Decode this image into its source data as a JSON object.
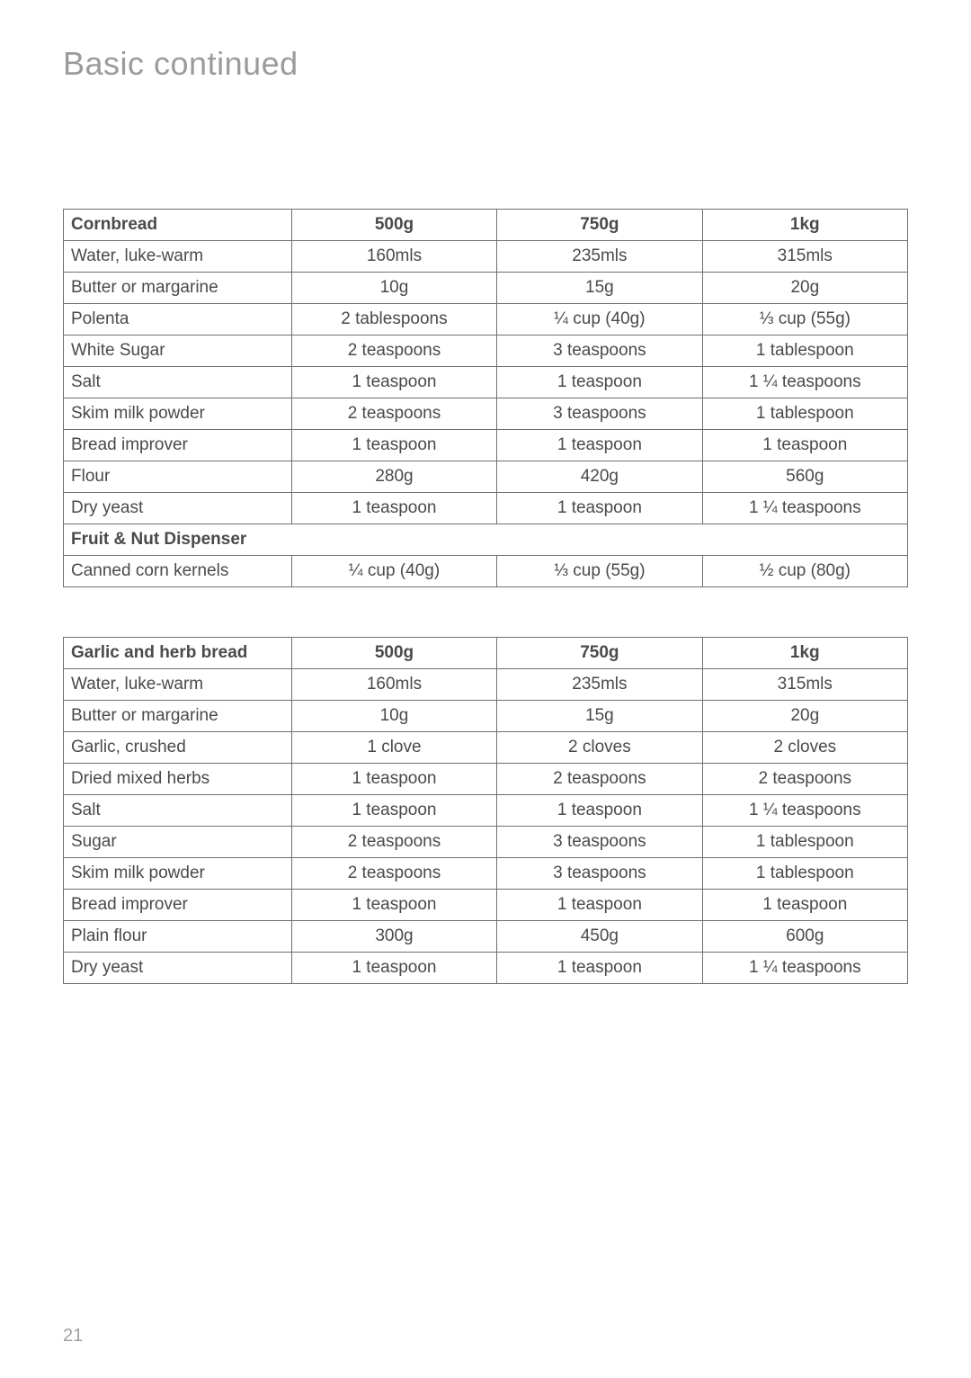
{
  "page_title": "Basic continued",
  "page_number": "21",
  "style": {
    "page_bg": "#ffffff",
    "title_color": "#9b9b9b",
    "title_fontsize": 36,
    "border_color": "#6f6f6f",
    "text_color": "#4a4a4a",
    "cell_fontsize": 19,
    "pagenum_color": "#a0a0a0",
    "col_widths_pct": [
      27,
      24.3,
      24.3,
      24.4
    ]
  },
  "tables": [
    {
      "header": [
        "Cornbread",
        "500g",
        "750g",
        "1kg"
      ],
      "rows": [
        {
          "type": "row",
          "cells": [
            "Water, luke-warm",
            "160mls",
            "235mls",
            "315mls"
          ]
        },
        {
          "type": "row",
          "cells": [
            "Butter or margarine",
            "10g",
            "15g",
            "20g"
          ]
        },
        {
          "type": "row",
          "cells": [
            "Polenta",
            "2 tablespoons",
            "¼ cup (40g)",
            "⅓ cup (55g)"
          ]
        },
        {
          "type": "row",
          "cells": [
            "White Sugar",
            "2 teaspoons",
            "3 teaspoons",
            "1 tablespoon"
          ]
        },
        {
          "type": "row",
          "cells": [
            "Salt",
            "1 teaspoon",
            "1 teaspoon",
            "1 ¼ teaspoons"
          ]
        },
        {
          "type": "row",
          "cells": [
            "Skim milk powder",
            "2 teaspoons",
            "3 teaspoons",
            "1 tablespoon"
          ]
        },
        {
          "type": "row",
          "cells": [
            "Bread improver",
            "1 teaspoon",
            "1 teaspoon",
            "1 teaspoon"
          ]
        },
        {
          "type": "row",
          "cells": [
            "Flour",
            "280g",
            "420g",
            "560g"
          ]
        },
        {
          "type": "row",
          "cells": [
            "Dry yeast",
            "1 teaspoon",
            "1 teaspoon",
            "1 ¼ teaspoons"
          ]
        },
        {
          "type": "section",
          "label": "Fruit & Nut Dispenser"
        },
        {
          "type": "row",
          "cells": [
            "Canned corn kernels",
            "¼ cup (40g)",
            "⅓ cup (55g)",
            "½ cup (80g)"
          ]
        }
      ]
    },
    {
      "header": [
        "Garlic and herb bread",
        "500g",
        "750g",
        "1kg"
      ],
      "rows": [
        {
          "type": "row",
          "cells": [
            "Water, luke-warm",
            "160mls",
            "235mls",
            "315mls"
          ]
        },
        {
          "type": "row",
          "cells": [
            "Butter or margarine",
            "10g",
            "15g",
            "20g"
          ]
        },
        {
          "type": "row",
          "cells": [
            "Garlic, crushed",
            "1 clove",
            "2 cloves",
            "2 cloves"
          ]
        },
        {
          "type": "row",
          "cells": [
            "Dried mixed herbs",
            "1 teaspoon",
            "2 teaspoons",
            "2 teaspoons"
          ]
        },
        {
          "type": "row",
          "cells": [
            "Salt",
            "1 teaspoon",
            "1 teaspoon",
            "1 ¼ teaspoons"
          ]
        },
        {
          "type": "row",
          "cells": [
            "Sugar",
            "2 teaspoons",
            "3 teaspoons",
            "1 tablespoon"
          ]
        },
        {
          "type": "row",
          "cells": [
            "Skim milk powder",
            "2 teaspoons",
            "3 teaspoons",
            "1 tablespoon"
          ]
        },
        {
          "type": "row",
          "cells": [
            "Bread improver",
            "1 teaspoon",
            "1 teaspoon",
            "1 teaspoon"
          ]
        },
        {
          "type": "row",
          "cells": [
            "Plain flour",
            "300g",
            "450g",
            "600g"
          ]
        },
        {
          "type": "row",
          "cells": [
            "Dry yeast",
            "1 teaspoon",
            "1 teaspoon",
            "1 ¼ teaspoons"
          ]
        }
      ]
    }
  ]
}
